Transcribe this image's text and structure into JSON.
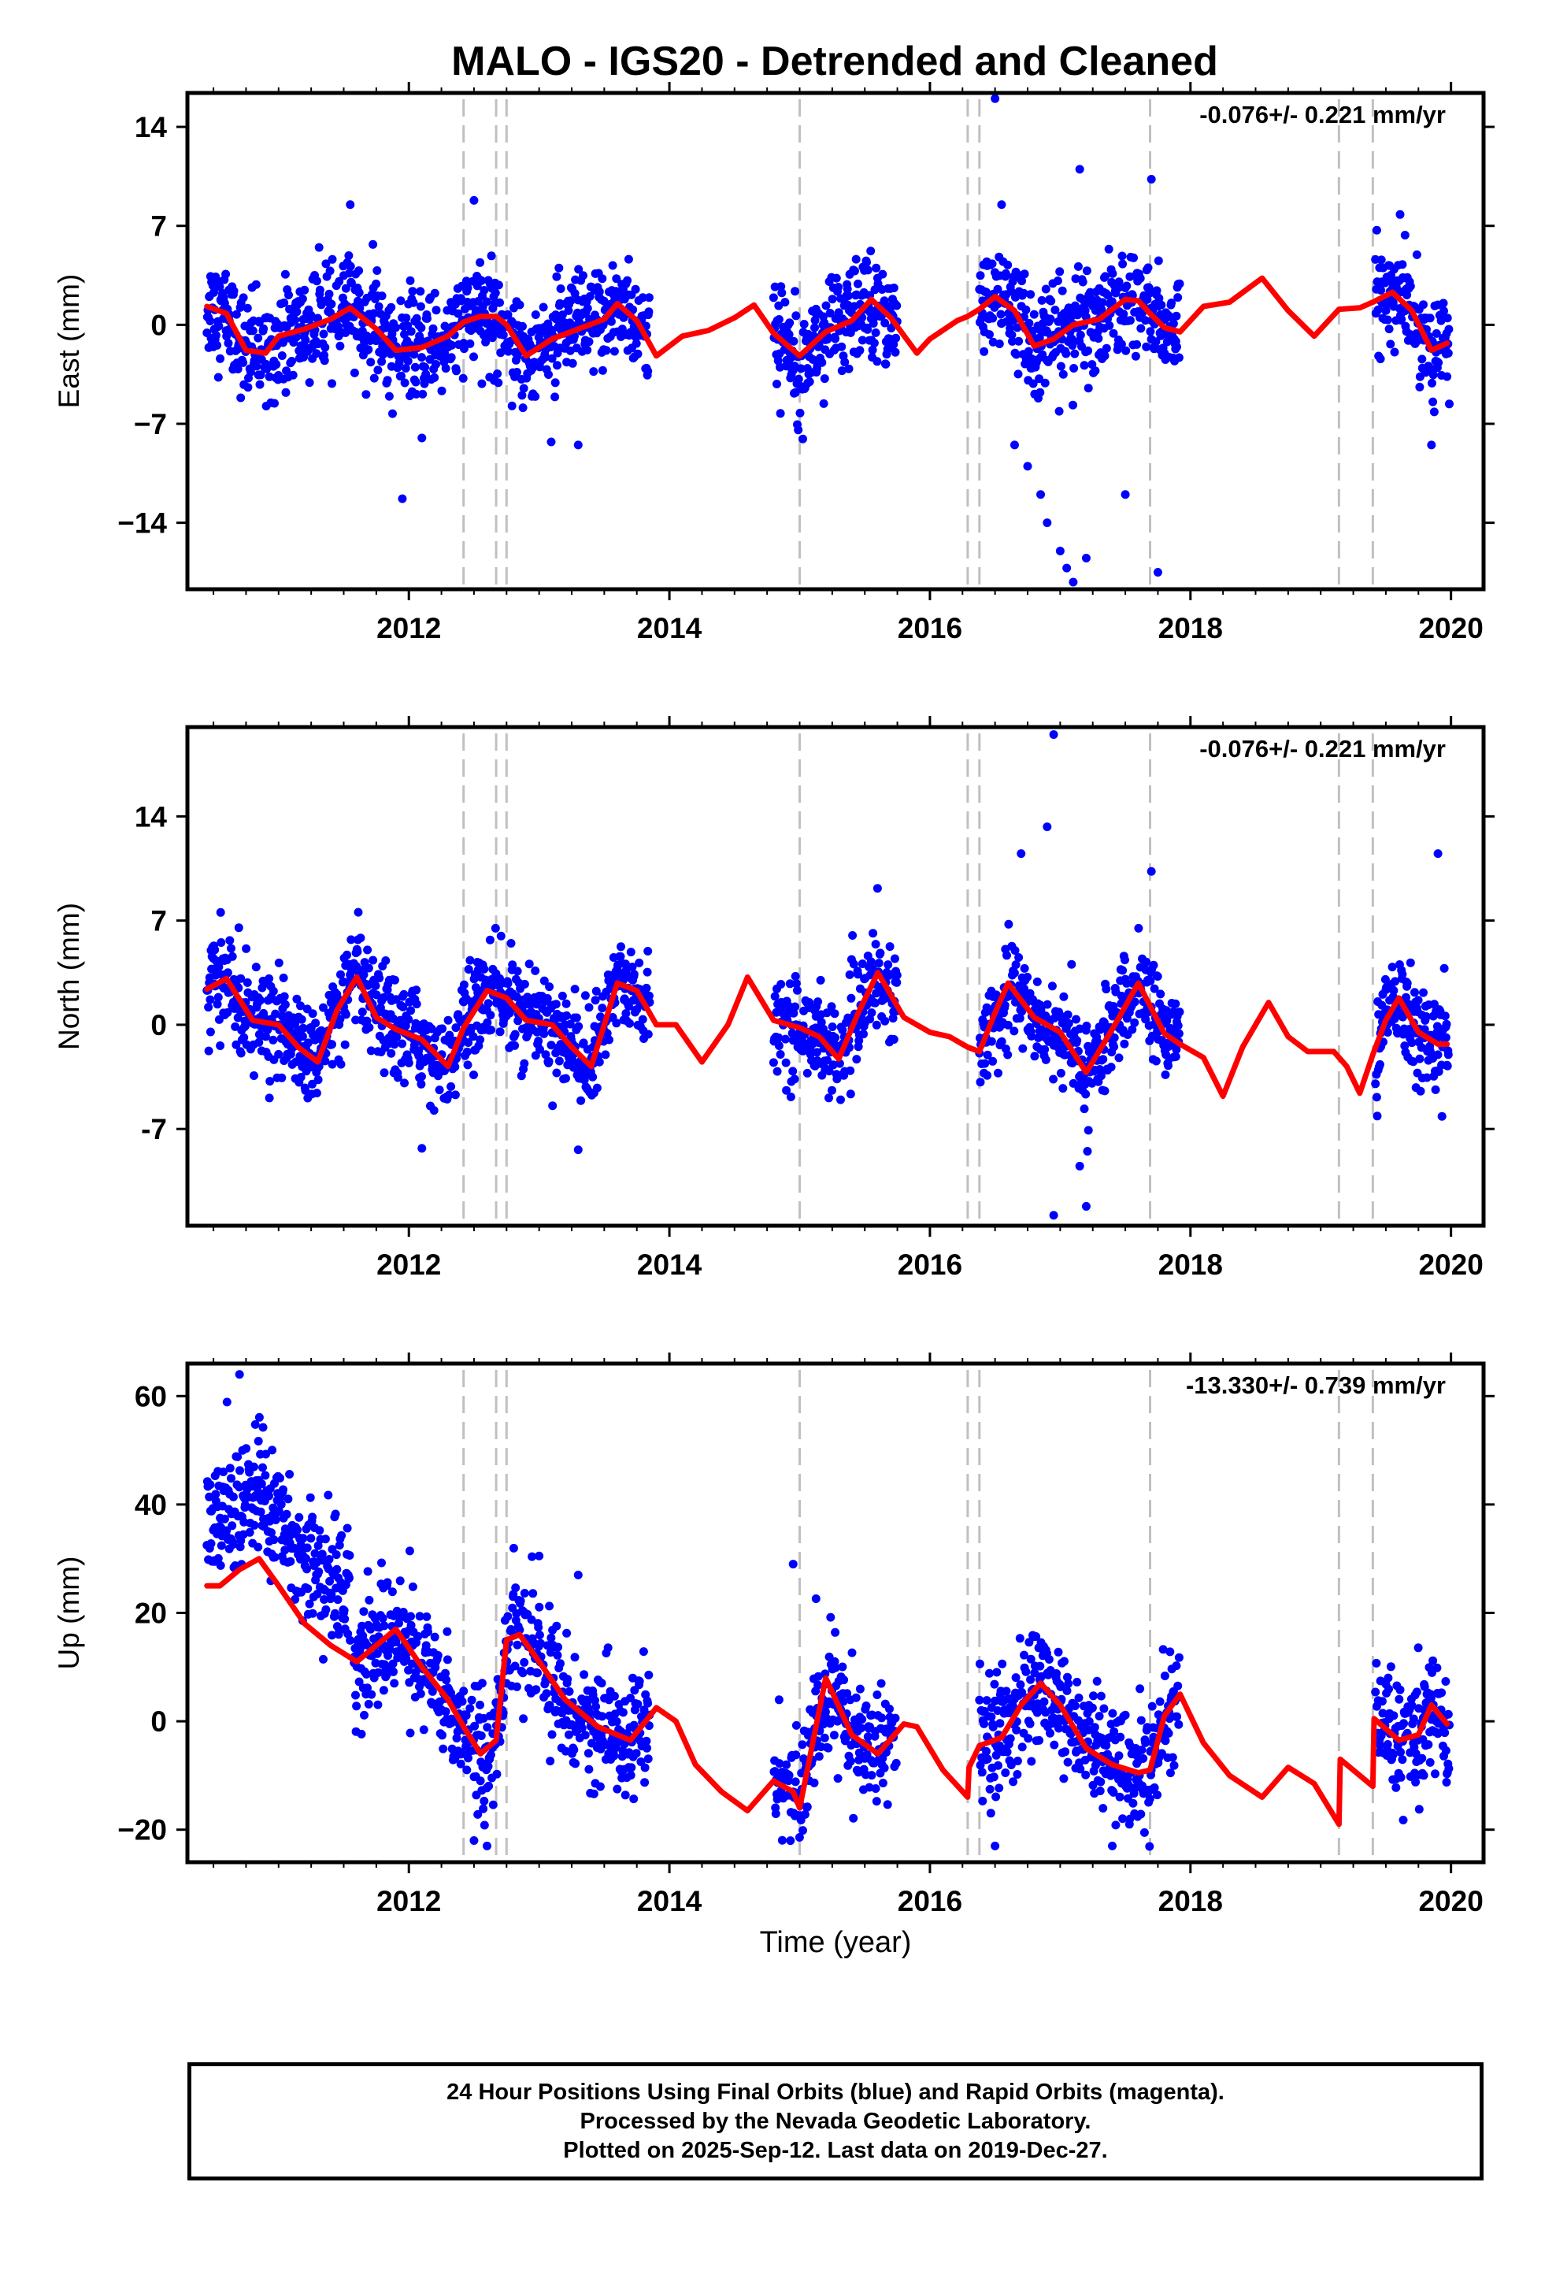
{
  "title": "MALO - IGS20 - Detrended and Cleaned",
  "colors": {
    "final_orbits": "#0000ff",
    "model": "#ff0000",
    "events": "#c0c0c0",
    "axis": "#000000"
  },
  "x_axis": {
    "label": "Time (year)",
    "range": [
      2010.3,
      2020.25
    ],
    "ticks": [
      2012,
      2014,
      2016,
      2018,
      2020
    ],
    "tick_labels": [
      "2012",
      "2014",
      "2016",
      "2018",
      "2020"
    ],
    "minor_tick_step": 0.25
  },
  "event_lines": [
    2012.42,
    2012.67,
    2012.75,
    2015.0,
    2016.29,
    2016.38,
    2017.69,
    2019.14,
    2019.4
  ],
  "data_gaps": [
    [
      2013.85,
      2014.8
    ],
    [
      2016.21,
      2016.38
    ],
    [
      2017.92,
      2019.42
    ]
  ],
  "chart_data": [
    {
      "type": "scatter",
      "panel": "east",
      "ylabel": "East (mm)",
      "ylim": [
        -18.7,
        16.4
      ],
      "y_ticks": [
        -14,
        -7,
        0,
        7,
        14
      ],
      "y_tick_labels": [
        "−14",
        "−7",
        "0",
        "7",
        "14"
      ],
      "rate_text": "-0.076+/- 0.221 mm/yr",
      "noise_sd": 1.8,
      "series": [
        {
          "kind": "model",
          "x": [
            2010.45,
            2010.6,
            2010.75,
            2010.9,
            2011.0,
            2011.2,
            2011.4,
            2011.55,
            2011.75,
            2011.9,
            2012.1,
            2012.3,
            2012.42,
            2012.55,
            2012.67,
            2012.75,
            2012.9,
            2013.1,
            2013.3,
            2013.5,
            2013.6,
            2013.75,
            2013.9,
            2014.1,
            2014.3,
            2014.5,
            2014.65,
            2014.8,
            2015.0,
            2015.2,
            2015.4,
            2015.55,
            2015.7,
            2015.9,
            2016.0,
            2016.21,
            2016.29,
            2016.38,
            2016.5,
            2016.65,
            2016.8,
            2016.95,
            2017.1,
            2017.3,
            2017.5,
            2017.6,
            2017.69,
            2017.8,
            2017.92,
            2018.1,
            2018.3,
            2018.55,
            2018.75,
            2018.95,
            2019.14,
            2019.3,
            2019.4,
            2019.55,
            2019.7,
            2019.85,
            2019.97
          ],
          "y": [
            1.3,
            0.8,
            -1.8,
            -2.0,
            -0.8,
            -0.3,
            0.4,
            1.2,
            -0.3,
            -1.8,
            -1.6,
            -0.8,
            0.2,
            0.6,
            0.6,
            0.0,
            -2.2,
            -1.0,
            -0.3,
            0.4,
            1.5,
            0.3,
            -2.2,
            -0.8,
            -0.4,
            0.5,
            1.4,
            -0.6,
            -2.2,
            -0.5,
            0.3,
            1.8,
            0.5,
            -2.0,
            -1.0,
            0.3,
            0.6,
            1.1,
            2.0,
            1.0,
            -1.5,
            -1.0,
            0.0,
            0.4,
            1.8,
            1.7,
            0.8,
            -0.2,
            -0.5,
            1.3,
            1.6,
            3.3,
            1.0,
            -0.8,
            1.1,
            1.2,
            1.6,
            2.3,
            1.0,
            -1.8,
            -1.3
          ]
        },
        {
          "kind": "outliers",
          "x": [
            2011.55,
            2011.95,
            2012.5,
            2016.5,
            2016.55,
            2016.65,
            2016.75,
            2016.85,
            2016.9,
            2017.0,
            2017.05,
            2017.1,
            2017.15,
            2017.2,
            2017.5,
            2017.7,
            2017.75,
            2019.85,
            2012.1,
            2013.3
          ],
          "y": [
            8.5,
            -12.3,
            8.8,
            16.0,
            8.5,
            -8.5,
            -10.0,
            -12.0,
            -14.0,
            -16.0,
            -17.2,
            -18.2,
            11.0,
            -16.5,
            -12.0,
            10.3,
            -17.5,
            -8.5,
            -8.0,
            -8.5
          ]
        }
      ]
    },
    {
      "type": "scatter",
      "panel": "north",
      "ylabel": "North (mm)",
      "ylim": [
        -13.5,
        20.0
      ],
      "y_ticks": [
        -7,
        0,
        7,
        14
      ],
      "y_tick_labels": [
        "-7",
        "0",
        "7",
        "14"
      ],
      "rate_text": "-0.076+/- 0.221 mm/yr",
      "noise_sd": 1.6,
      "series": [
        {
          "kind": "model",
          "x": [
            2010.45,
            2010.6,
            2010.8,
            2011.0,
            2011.15,
            2011.3,
            2011.45,
            2011.6,
            2011.75,
            2011.9,
            2012.1,
            2012.3,
            2012.42,
            2012.6,
            2012.75,
            2012.9,
            2013.1,
            2013.25,
            2013.4,
            2013.6,
            2013.75,
            2013.9,
            2014.05,
            2014.25,
            2014.45,
            2014.6,
            2014.8,
            2015.0,
            2015.15,
            2015.3,
            2015.45,
            2015.6,
            2015.8,
            2016.0,
            2016.15,
            2016.29,
            2016.38,
            2016.5,
            2016.6,
            2016.8,
            2017.0,
            2017.2,
            2017.4,
            2017.6,
            2017.8,
            2017.92,
            2018.1,
            2018.25,
            2018.4,
            2018.6,
            2018.75,
            2018.9,
            2019.1,
            2019.2,
            2019.3,
            2019.4,
            2019.5,
            2019.6,
            2019.75,
            2019.9,
            2019.97
          ],
          "y": [
            2.4,
            3.1,
            0.3,
            0.0,
            -1.5,
            -2.5,
            1.0,
            3.2,
            0.5,
            -0.3,
            -1.0,
            -2.8,
            -0.2,
            2.3,
            1.8,
            0.3,
            0.0,
            -1.5,
            -2.8,
            2.8,
            2.3,
            0.0,
            0.0,
            -2.5,
            0.0,
            3.2,
            0.3,
            -0.2,
            -0.8,
            -2.3,
            0.8,
            3.5,
            0.5,
            -0.5,
            -0.8,
            -1.5,
            -1.8,
            0.8,
            2.8,
            0.5,
            -0.5,
            -3.2,
            -0.3,
            2.8,
            -0.6,
            -1.3,
            -2.2,
            -4.8,
            -1.5,
            1.5,
            -0.8,
            -1.8,
            -1.8,
            -2.8,
            -4.6,
            -2.0,
            0.3,
            1.8,
            -0.5,
            -1.3,
            -1.3
          ]
        },
        {
          "kind": "outliers",
          "x": [
            2016.95,
            2016.9,
            2016.7,
            2017.2,
            2017.7,
            2017.15,
            2019.9,
            2016.95,
            2012.1,
            2013.3
          ],
          "y": [
            19.5,
            13.3,
            11.5,
            -12.2,
            10.3,
            -9.5,
            11.5,
            -12.8,
            -8.3,
            -8.4
          ]
        }
      ]
    },
    {
      "type": "scatter",
      "panel": "up",
      "ylabel": "Up (mm)",
      "ylim": [
        -26.0,
        66.0
      ],
      "y_ticks": [
        -20,
        0,
        20,
        40,
        60
      ],
      "y_tick_labels": [
        "−20",
        "0",
        "20",
        "40",
        "60"
      ],
      "rate_text": "-13.330+/- 0.739 mm/yr",
      "noise_sd": 5.5,
      "series": [
        {
          "kind": "model",
          "x": [
            2010.45,
            2010.55,
            2010.7,
            2010.85,
            2011.0,
            2011.2,
            2011.4,
            2011.6,
            2011.75,
            2011.9,
            2012.1,
            2012.3,
            2012.42,
            2012.55,
            2012.67,
            2012.75,
            2012.85,
            2013.0,
            2013.2,
            2013.45,
            2013.7,
            2013.9,
            2014.05,
            2014.2,
            2014.4,
            2014.6,
            2014.8,
            2014.95,
            2015.0,
            2015.2,
            2015.4,
            2015.6,
            2015.8,
            2015.9,
            2016.1,
            2016.29,
            2016.3,
            2016.38,
            2016.55,
            2016.7,
            2016.85,
            2017.0,
            2017.2,
            2017.4,
            2017.6,
            2017.69,
            2017.8,
            2017.92,
            2018.1,
            2018.3,
            2018.55,
            2018.75,
            2018.95,
            2019.14,
            2019.15,
            2019.4,
            2019.41,
            2019.6,
            2019.75,
            2019.85,
            2019.97
          ],
          "y": [
            25.0,
            25.0,
            28.0,
            30.0,
            25.0,
            18.0,
            14.0,
            11.0,
            14.0,
            17.0,
            10.0,
            4.0,
            -1.0,
            -6.0,
            -3.5,
            15.0,
            16.0,
            11.0,
            4.0,
            -1.0,
            -3.5,
            2.5,
            0.0,
            -8.0,
            -13.0,
            -16.5,
            -11.0,
            -13.0,
            -16.0,
            8.0,
            -2.5,
            -6.0,
            -0.5,
            -1.0,
            -9.0,
            -14.0,
            -8.5,
            -4.5,
            -3.0,
            3.0,
            7.0,
            3.0,
            -5.0,
            -8.0,
            -9.5,
            -9.0,
            1.0,
            5.0,
            -4.0,
            -10.0,
            -14.0,
            -8.5,
            -11.5,
            -19.0,
            -7.0,
            -12.0,
            0.5,
            -3.5,
            -2.5,
            3.0,
            -0.5
          ]
        },
        {
          "kind": "outliers",
          "x": [
            2010.7,
            2011.8,
            2012.5,
            2012.6,
            2013.3,
            2013.0,
            2014.95,
            2016.5,
            2017.4,
            2012.8
          ],
          "y": [
            64.0,
            19.0,
            -22.0,
            -23.0,
            27.0,
            30.5,
            29.0,
            -23.0,
            -23.0,
            23.0
          ]
        }
      ]
    }
  ],
  "data_windows": [
    [
      2010.45,
      2013.85
    ],
    [
      2014.8,
      2015.75
    ],
    [
      2016.38,
      2017.92
    ],
    [
      2019.42,
      2019.99
    ]
  ],
  "up_windows": [
    [
      2010.45,
      2011.55
    ],
    [
      2011.58,
      2013.85
    ],
    [
      2014.8,
      2015.75
    ],
    [
      2016.38,
      2017.92
    ],
    [
      2019.42,
      2019.99
    ]
  ],
  "footer": {
    "line1": "24 Hour Positions Using Final Orbits (blue) and Rapid Orbits (magenta).",
    "line2": "Processed by the Nevada Geodetic Laboratory.",
    "line3": "Plotted on 2025-Sep-12. Last data on 2019-Dec-27."
  }
}
